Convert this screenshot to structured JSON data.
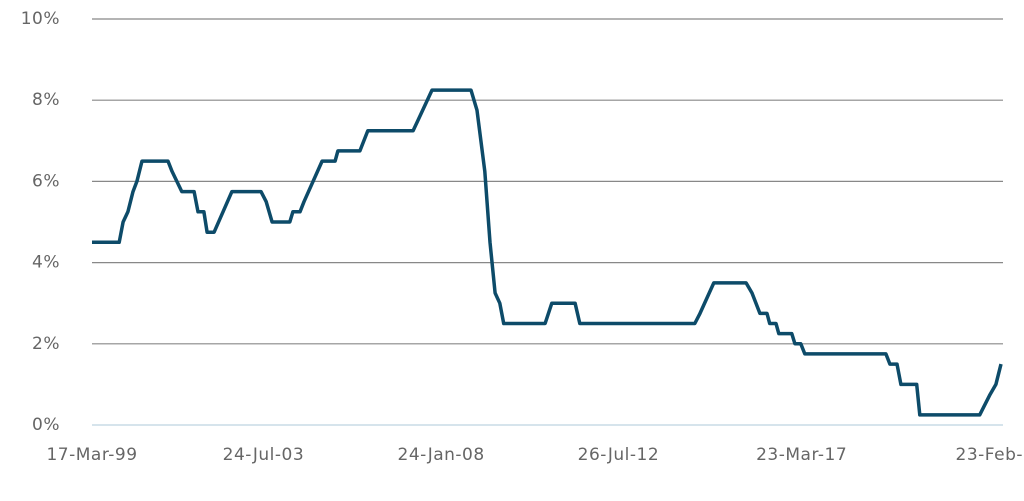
{
  "chart_data": {
    "type": "line",
    "x": [
      1999.21,
      1999.9,
      2000.0,
      2000.12,
      2000.25,
      2000.35,
      2000.48,
      2001.14,
      2001.24,
      2001.49,
      2001.8,
      2001.9,
      2002.05,
      2002.13,
      2002.31,
      2002.76,
      2003.5,
      2003.63,
      2003.78,
      2004.23,
      2004.31,
      2004.49,
      2004.59,
      2005.05,
      2005.38,
      2005.45,
      2006.01,
      2006.21,
      2007.36,
      2007.48,
      2007.84,
      2008.83,
      2008.98,
      2009.18,
      2009.31,
      2009.44,
      2009.56,
      2009.66,
      2010.71,
      2010.88,
      2011.47,
      2011.59,
      2014.51,
      2014.64,
      2014.99,
      2015.81,
      2015.96,
      2016.16,
      2016.34,
      2016.41,
      2016.57,
      2016.64,
      2016.97,
      2017.05,
      2017.2,
      2017.3,
      2019.36,
      2019.46,
      2019.64,
      2019.74,
      2020.14,
      2020.22,
      2021.74,
      2022.0,
      2022.15,
      2022.28
    ],
    "series": [
      {
        "color": "#0d4b69",
        "values": [
          4.5,
          4.5,
          5.0,
          5.25,
          5.75,
          6.0,
          6.5,
          6.5,
          6.25,
          5.75,
          5.75,
          5.25,
          5.25,
          4.75,
          4.75,
          5.75,
          5.75,
          5.5,
          5.0,
          5.0,
          5.25,
          5.25,
          5.5,
          6.5,
          6.5,
          6.75,
          6.75,
          7.25,
          7.25,
          7.5,
          8.25,
          8.25,
          7.75,
          6.25,
          4.5,
          3.25,
          3.0,
          2.5,
          2.5,
          3.0,
          3.0,
          2.5,
          2.5,
          2.75,
          3.5,
          3.5,
          3.25,
          2.75,
          2.75,
          2.5,
          2.5,
          2.25,
          2.25,
          2.0,
          2.0,
          1.75,
          1.75,
          1.5,
          1.5,
          1.0,
          1.0,
          0.25,
          0.25,
          0.75,
          1.0,
          1.5
        ]
      }
    ],
    "xlim": [
      1999.21,
      2022.28
    ],
    "xticks": [
      {
        "value": 1999.21,
        "label": "17-Mar-99"
      },
      {
        "value": 2003.56,
        "label": "24-Jul-03"
      },
      {
        "value": 2008.07,
        "label": "24-Jan-08"
      },
      {
        "value": 2012.57,
        "label": "26-Jul-12"
      },
      {
        "value": 2017.22,
        "label": "23-Mar-17"
      },
      {
        "value": 2022.15,
        "label": "23-Feb-"
      }
    ],
    "ylim": [
      0,
      10
    ],
    "yticks": [
      {
        "value": 0,
        "label": "0%"
      },
      {
        "value": 2,
        "label": "2%"
      },
      {
        "value": 4,
        "label": "4%"
      },
      {
        "value": 6,
        "label": "6%"
      },
      {
        "value": 8,
        "label": "8%"
      },
      {
        "value": 10,
        "label": "10%"
      }
    ],
    "grid": true
  }
}
